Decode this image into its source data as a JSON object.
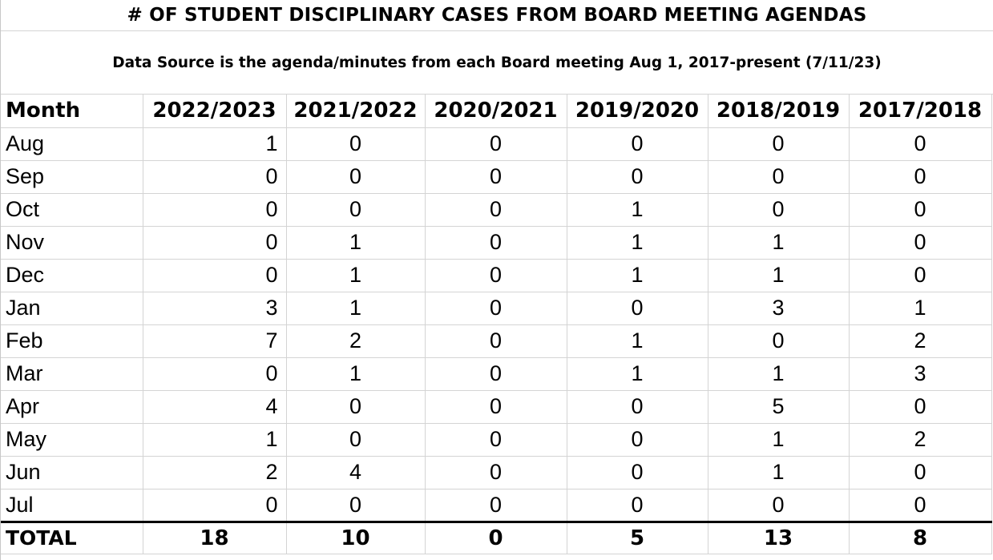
{
  "title": "# OF STUDENT DISCIPLINARY CASES FROM BOARD MEETING AGENDAS",
  "subtitle": "Data Source is the agenda/minutes from each Board meeting Aug 1, 2017-present (7/11/23)",
  "table": {
    "headers": [
      "Month",
      "2022/2023",
      "2021/2022",
      "2020/2021",
      "2019/2020",
      "2018/2019",
      "2017/2018"
    ],
    "rows": [
      {
        "month": "Aug",
        "values": [
          "1",
          "0",
          "0",
          "0",
          "0",
          "0"
        ]
      },
      {
        "month": "Sep",
        "values": [
          "0",
          "0",
          "0",
          "0",
          "0",
          "0"
        ]
      },
      {
        "month": "Oct",
        "values": [
          "0",
          "0",
          "0",
          "1",
          "0",
          "0"
        ]
      },
      {
        "month": "Nov",
        "values": [
          "0",
          "1",
          "0",
          "1",
          "1",
          "0"
        ]
      },
      {
        "month": "Dec",
        "values": [
          "0",
          "1",
          "0",
          "1",
          "1",
          "0"
        ]
      },
      {
        "month": "Jan",
        "values": [
          "3",
          "1",
          "0",
          "0",
          "3",
          "1"
        ]
      },
      {
        "month": "Feb",
        "values": [
          "7",
          "2",
          "0",
          "1",
          "0",
          "2"
        ]
      },
      {
        "month": "Mar",
        "values": [
          "0",
          "1",
          "0",
          "1",
          "1",
          "3"
        ]
      },
      {
        "month": "Apr",
        "values": [
          "4",
          "0",
          "0",
          "0",
          "5",
          "0"
        ]
      },
      {
        "month": "May",
        "values": [
          "1",
          "0",
          "0",
          "0",
          "1",
          "2"
        ]
      },
      {
        "month": "Jun",
        "values": [
          "2",
          "4",
          "0",
          "0",
          "1",
          "0"
        ]
      },
      {
        "month": "Jul",
        "values": [
          "0",
          "0",
          "0",
          "0",
          "0",
          "0"
        ]
      }
    ],
    "total": {
      "label": "TOTAL",
      "values": [
        "18",
        "10",
        "0",
        "5",
        "13",
        "8"
      ]
    }
  }
}
